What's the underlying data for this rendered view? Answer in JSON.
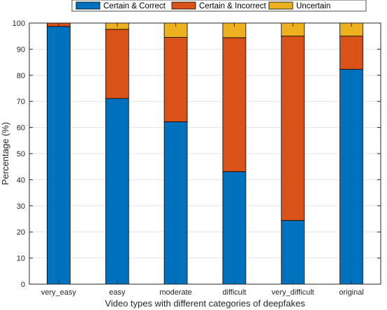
{
  "chart_data": {
    "type": "bar",
    "stacked": true,
    "categories": [
      "very_easy",
      "easy",
      "moderate",
      "difficult",
      "very_difficult",
      "original"
    ],
    "series": [
      {
        "name": "Certain & Correct",
        "color": "#0072BD",
        "values": [
          98.7,
          71.1,
          62.2,
          43.1,
          24.4,
          82.3
        ]
      },
      {
        "name": "Certain & Incorrect",
        "color": "#D95319",
        "values": [
          1.3,
          26.5,
          32.3,
          51.3,
          70.6,
          12.7
        ]
      },
      {
        "name": "Uncertain",
        "color": "#EDB120",
        "values": [
          0.0,
          2.4,
          5.5,
          5.6,
          5.0,
          5.0
        ]
      }
    ],
    "xlabel": "Video types with different categories of deepfakes",
    "ylabel": "Percentage (%)",
    "ylim": [
      0,
      100
    ],
    "yticks": [
      0,
      10,
      20,
      30,
      40,
      50,
      60,
      70,
      80,
      90,
      100
    ],
    "grid": true,
    "legend_position": "top",
    "legend_orientation": "horizontal"
  }
}
